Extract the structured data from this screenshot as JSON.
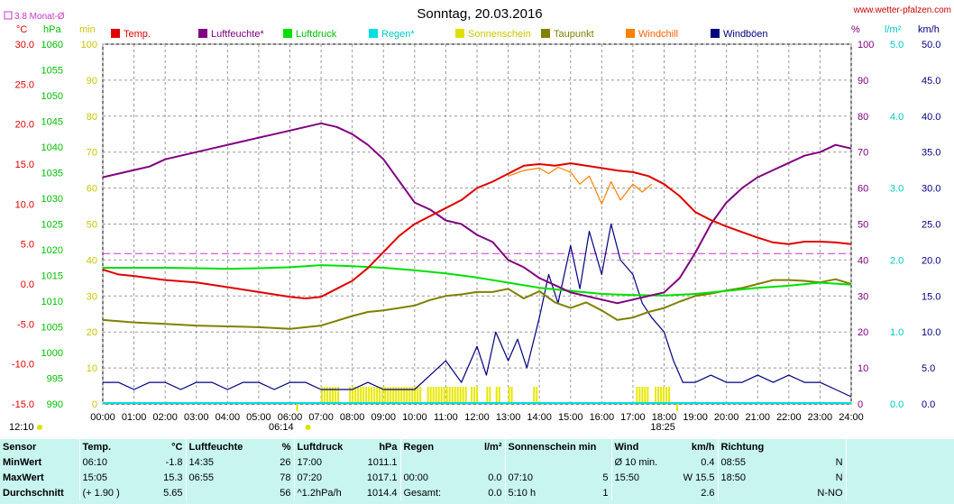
{
  "header": {
    "title": "Sonntag, 20.03.2016",
    "site": "www.wetter-pfalzen.com",
    "avg_label": "3.8 Monat-Ø",
    "avg_color": "#cc33cc"
  },
  "legend": [
    {
      "label": "Temp.",
      "color": "#e00000",
      "text_color": "#e00000"
    },
    {
      "label": "Luftfeuchte*",
      "color": "#800080",
      "text_color": "#800080"
    },
    {
      "label": "Luftdruck",
      "color": "#00e000",
      "text_color": "#00c000"
    },
    {
      "label": "Regen*",
      "color": "#00e0e0",
      "text_color": "#00c8c8"
    },
    {
      "label": "Sonnenschein",
      "color": "#e0e000",
      "text_color": "#c8c800"
    },
    {
      "label": "Taupunkt",
      "color": "#808000",
      "text_color": "#808000"
    },
    {
      "label": "Windchill",
      "color": "#ff8000",
      "text_color": "#ff6000"
    },
    {
      "label": "Windböen",
      "color": "#000080",
      "text_color": "#000080"
    }
  ],
  "axes": {
    "temp": {
      "unit": "°C",
      "ticks": [
        "30.0",
        "25.0",
        "20.0",
        "15.0",
        "10.0",
        "5.0",
        "0.0",
        "-5.0",
        "-10.0",
        "-15.0"
      ],
      "min": -15,
      "max": 30,
      "color": "#e00000"
    },
    "pressure": {
      "unit": "hPa",
      "ticks": [
        "1060",
        "1055",
        "1050",
        "1045",
        "1040",
        "1035",
        "1030",
        "1025",
        "1020",
        "1015",
        "1010",
        "1005",
        "1000",
        "995",
        "990"
      ],
      "min": 990,
      "max": 1060,
      "color": "#00c000"
    },
    "sun": {
      "unit": "min",
      "ticks": [
        "100",
        "90",
        "80",
        "70",
        "60",
        "50",
        "40",
        "30",
        "20",
        "10",
        "0"
      ],
      "min": 0,
      "max": 100,
      "color": "#c8c800"
    },
    "humidity": {
      "unit": "%",
      "ticks": [
        "100",
        "90",
        "80",
        "70",
        "60",
        "50",
        "40",
        "30",
        "20",
        "10",
        "0"
      ],
      "min": 0,
      "max": 100,
      "color": "#800080"
    },
    "rain": {
      "unit": "l/m²",
      "ticks": [
        "5.0",
        "4.0",
        "3.0",
        "2.0",
        "1.0",
        "0.0"
      ],
      "min": 0,
      "max": 5,
      "color": "#00c8c8"
    },
    "wind": {
      "unit": "km/h",
      "ticks": [
        "50.0",
        "45.0",
        "40.0",
        "35.0",
        "30.0",
        "25.0",
        "20.0",
        "15.0",
        "10.0",
        "5.0",
        "0.0"
      ],
      "min": 0,
      "max": 50,
      "color": "#000080"
    },
    "x_ticks": [
      "00:00",
      "01:00",
      "02:00",
      "03:00",
      "04:00",
      "05:00",
      "06:00",
      "07:00",
      "08:00",
      "09:00",
      "10:00",
      "11:00",
      "12:00",
      "13:00",
      "14:00",
      "15:00",
      "16:00",
      "17:00",
      "18:00",
      "19:00",
      "20:00",
      "21:00",
      "22:00",
      "23:00",
      "24:00"
    ]
  },
  "sun_marks": {
    "sunrise": "06:14",
    "sunset": "18:25",
    "daylength": "12:10"
  },
  "chart_data": {
    "type": "line",
    "x_unit": "hour",
    "monthly_avg_temp": 3.8,
    "series": [
      {
        "name": "Temp.",
        "axis": "temp",
        "x": [
          0,
          0.5,
          1,
          2,
          3,
          4,
          5,
          6,
          6.5,
          7,
          7.5,
          8,
          8.5,
          9,
          9.5,
          10,
          10.5,
          11,
          11.5,
          12,
          12.5,
          13,
          13.5,
          14,
          14.5,
          15,
          15.5,
          16,
          16.5,
          17,
          17.5,
          18,
          18.5,
          19,
          19.5,
          20,
          20.5,
          21,
          21.5,
          22,
          22.5,
          23,
          23.5,
          24
        ],
        "y": [
          1.8,
          1.2,
          1.0,
          0.5,
          0.2,
          -0.4,
          -1.0,
          -1.6,
          -1.8,
          -1.6,
          -0.6,
          0.4,
          2.0,
          4.0,
          6.0,
          7.5,
          8.5,
          9.5,
          10.5,
          12.0,
          12.8,
          13.8,
          14.8,
          15.0,
          14.8,
          15.1,
          14.8,
          14.5,
          14.2,
          14.0,
          13.5,
          12.5,
          11.0,
          9.0,
          8.0,
          7.2,
          6.5,
          5.8,
          5.2,
          5.0,
          5.3,
          5.3,
          5.2,
          5.0
        ]
      },
      {
        "name": "Windchill",
        "axis": "temp",
        "x": [
          13,
          13.5,
          14,
          14.3,
          14.6,
          15,
          15.3,
          15.6,
          16,
          16.3,
          16.6,
          17,
          17.3,
          17.6
        ],
        "y": [
          13.5,
          14.2,
          14.5,
          13.8,
          14.6,
          14.0,
          12.5,
          13.5,
          10.0,
          12.8,
          10.5,
          12.5,
          11.5,
          12.5
        ]
      },
      {
        "name": "Luftfeuchte*",
        "axis": "humidity",
        "x": [
          0,
          0.5,
          1,
          1.5,
          2,
          3,
          4,
          5,
          5.5,
          6,
          6.5,
          7,
          7.5,
          8,
          8.5,
          9,
          9.5,
          10,
          10.5,
          11,
          11.5,
          12,
          12.5,
          13,
          13.5,
          14,
          14.5,
          15,
          15.5,
          16,
          16.5,
          17,
          17.5,
          18,
          18.5,
          19,
          19.5,
          20,
          20.5,
          21,
          21.5,
          22,
          22.5,
          23,
          23.5,
          24
        ],
        "y": [
          63,
          64,
          65,
          66,
          68,
          70,
          72,
          74,
          75,
          76,
          77,
          78,
          77,
          75,
          72,
          68,
          62,
          56,
          54,
          51,
          50,
          47,
          45,
          40,
          38,
          35,
          33,
          31,
          30,
          29,
          28,
          29,
          30,
          31,
          35,
          42,
          50,
          56,
          60,
          63,
          65,
          67,
          69,
          70,
          72,
          71
        ]
      },
      {
        "name": "Luftdruck",
        "axis": "pressure",
        "x": [
          0,
          1,
          2,
          3,
          4,
          5,
          6,
          7,
          8,
          9,
          10,
          11,
          12,
          13,
          14,
          15,
          16,
          17,
          18,
          19,
          20,
          21,
          22,
          23,
          24
        ],
        "y": [
          1016.5,
          1016.5,
          1016.5,
          1016.4,
          1016.3,
          1016.4,
          1016.6,
          1017.0,
          1016.8,
          1016.5,
          1016.0,
          1015.4,
          1014.6,
          1013.6,
          1012.6,
          1012.0,
          1011.4,
          1011.2,
          1011.1,
          1011.4,
          1012.0,
          1012.6,
          1013.0,
          1013.6,
          1013.2
        ]
      },
      {
        "name": "Taupunkt",
        "axis": "temp",
        "x": [
          0,
          1,
          2,
          3,
          4,
          5,
          6,
          7,
          7.5,
          8,
          8.5,
          9,
          9.5,
          10,
          10.5,
          11,
          11.5,
          12,
          12.5,
          13,
          13.5,
          14,
          14.5,
          15,
          15.5,
          16,
          16.5,
          17,
          17.5,
          18,
          18.5,
          19,
          19.5,
          20,
          20.5,
          21,
          21.5,
          22,
          22.5,
          23,
          23.5,
          24
        ],
        "y": [
          -4.5,
          -4.8,
          -5.0,
          -5.2,
          -5.3,
          -5.4,
          -5.6,
          -5.2,
          -4.6,
          -4.0,
          -3.5,
          -3.3,
          -3.0,
          -2.7,
          -2.0,
          -1.5,
          -1.3,
          -1.0,
          -1.0,
          -0.6,
          -1.8,
          -0.9,
          -2.3,
          -3.0,
          -2.3,
          -3.3,
          -4.5,
          -4.2,
          -3.5,
          -3.0,
          -2.2,
          -1.5,
          -1.2,
          -0.8,
          -0.5,
          0.0,
          0.5,
          0.5,
          0.4,
          0.2,
          0.6,
          0.0
        ]
      },
      {
        "name": "Windböen",
        "axis": "wind",
        "x": [
          0,
          0.5,
          1,
          1.5,
          2,
          2.5,
          3,
          3.5,
          4,
          4.5,
          5,
          5.5,
          6,
          6.5,
          7,
          7.5,
          8,
          8.5,
          9,
          9.5,
          10,
          10.5,
          11,
          11.5,
          12,
          12.3,
          12.6,
          13,
          13.3,
          13.6,
          14,
          14.3,
          14.6,
          15,
          15.3,
          15.6,
          16,
          16.3,
          16.6,
          17,
          17.3,
          17.6,
          18,
          18.3,
          18.6,
          19,
          19.5,
          20,
          20.5,
          21,
          21.5,
          22,
          22.5,
          23,
          23.5,
          24
        ],
        "y": [
          3,
          3,
          2,
          3,
          3,
          2,
          3,
          3,
          2,
          3,
          3,
          2,
          3,
          3,
          2,
          2,
          2,
          3,
          2,
          2,
          2,
          4,
          6,
          3,
          8,
          4,
          10,
          6,
          9,
          5,
          12,
          18,
          14,
          22,
          16,
          24,
          18,
          25,
          20,
          18,
          14,
          12,
          10,
          6,
          3,
          3,
          4,
          3,
          3,
          4,
          3,
          4,
          3,
          3,
          2,
          1
        ]
      }
    ],
    "sunshine": {
      "axis": "sun",
      "intervals": [
        [
          7.0,
          7.6
        ],
        [
          7.9,
          10.2
        ],
        [
          10.4,
          11.7
        ],
        [
          11.8,
          12.0
        ],
        [
          12.3,
          12.4
        ],
        [
          12.6,
          12.7
        ],
        [
          13.0,
          13.1
        ],
        [
          13.8,
          13.9
        ],
        [
          17.1,
          17.5
        ],
        [
          17.7,
          18.2
        ]
      ]
    }
  },
  "summary": {
    "headers": {
      "sensor": "Sensor",
      "temp": "Temp.",
      "temp_unit": "°C",
      "hum": "Luftfeuchte",
      "hum_unit": "%",
      "press": "Luftdruck",
      "press_unit": "hPa",
      "rain": "Regen",
      "rain_unit": "l/m²",
      "sun": "Sonnenschein min",
      "wind": "Wind",
      "wind_unit": "km/h",
      "dir": "Richtung"
    },
    "rows": [
      {
        "label": "MinWert",
        "t_time": "06:10",
        "t_val": "-1.8",
        "h_time": "14:35",
        "h_val": "26",
        "p_time": "17:00",
        "p_val": "1011.1",
        "r_time": "",
        "r_val": "",
        "s_time": "",
        "s_val": "",
        "w_time": "Ø 10 min.",
        "w_val": "0.4",
        "d_time": "08:55",
        "d_val": "N"
      },
      {
        "label": "MaxWert",
        "t_time": "15:05",
        "t_val": "15.3",
        "h_time": "06:55",
        "h_val": "78",
        "p_time": "07:20",
        "p_val": "1017.1",
        "r_time": "00:00",
        "r_val": "0.0",
        "s_time": "07:10",
        "s_val": "5",
        "w_time": "15:50",
        "w_val": "W 15.5",
        "d_time": "18:50",
        "d_val": "N"
      },
      {
        "label": "Durchschnitt",
        "t_time": "(+ 1.90 )",
        "t_val": "5.65",
        "h_time": "",
        "h_val": "56",
        "p_time": "^1.2hPa/h",
        "p_val": "1014.4",
        "r_time": "Gesamt:",
        "r_val": "0.0",
        "s_time": "5:10 h",
        "s_val": "1",
        "w_time": "",
        "w_val": "2.6",
        "d_time": "",
        "d_val": "N-NO"
      }
    ]
  }
}
